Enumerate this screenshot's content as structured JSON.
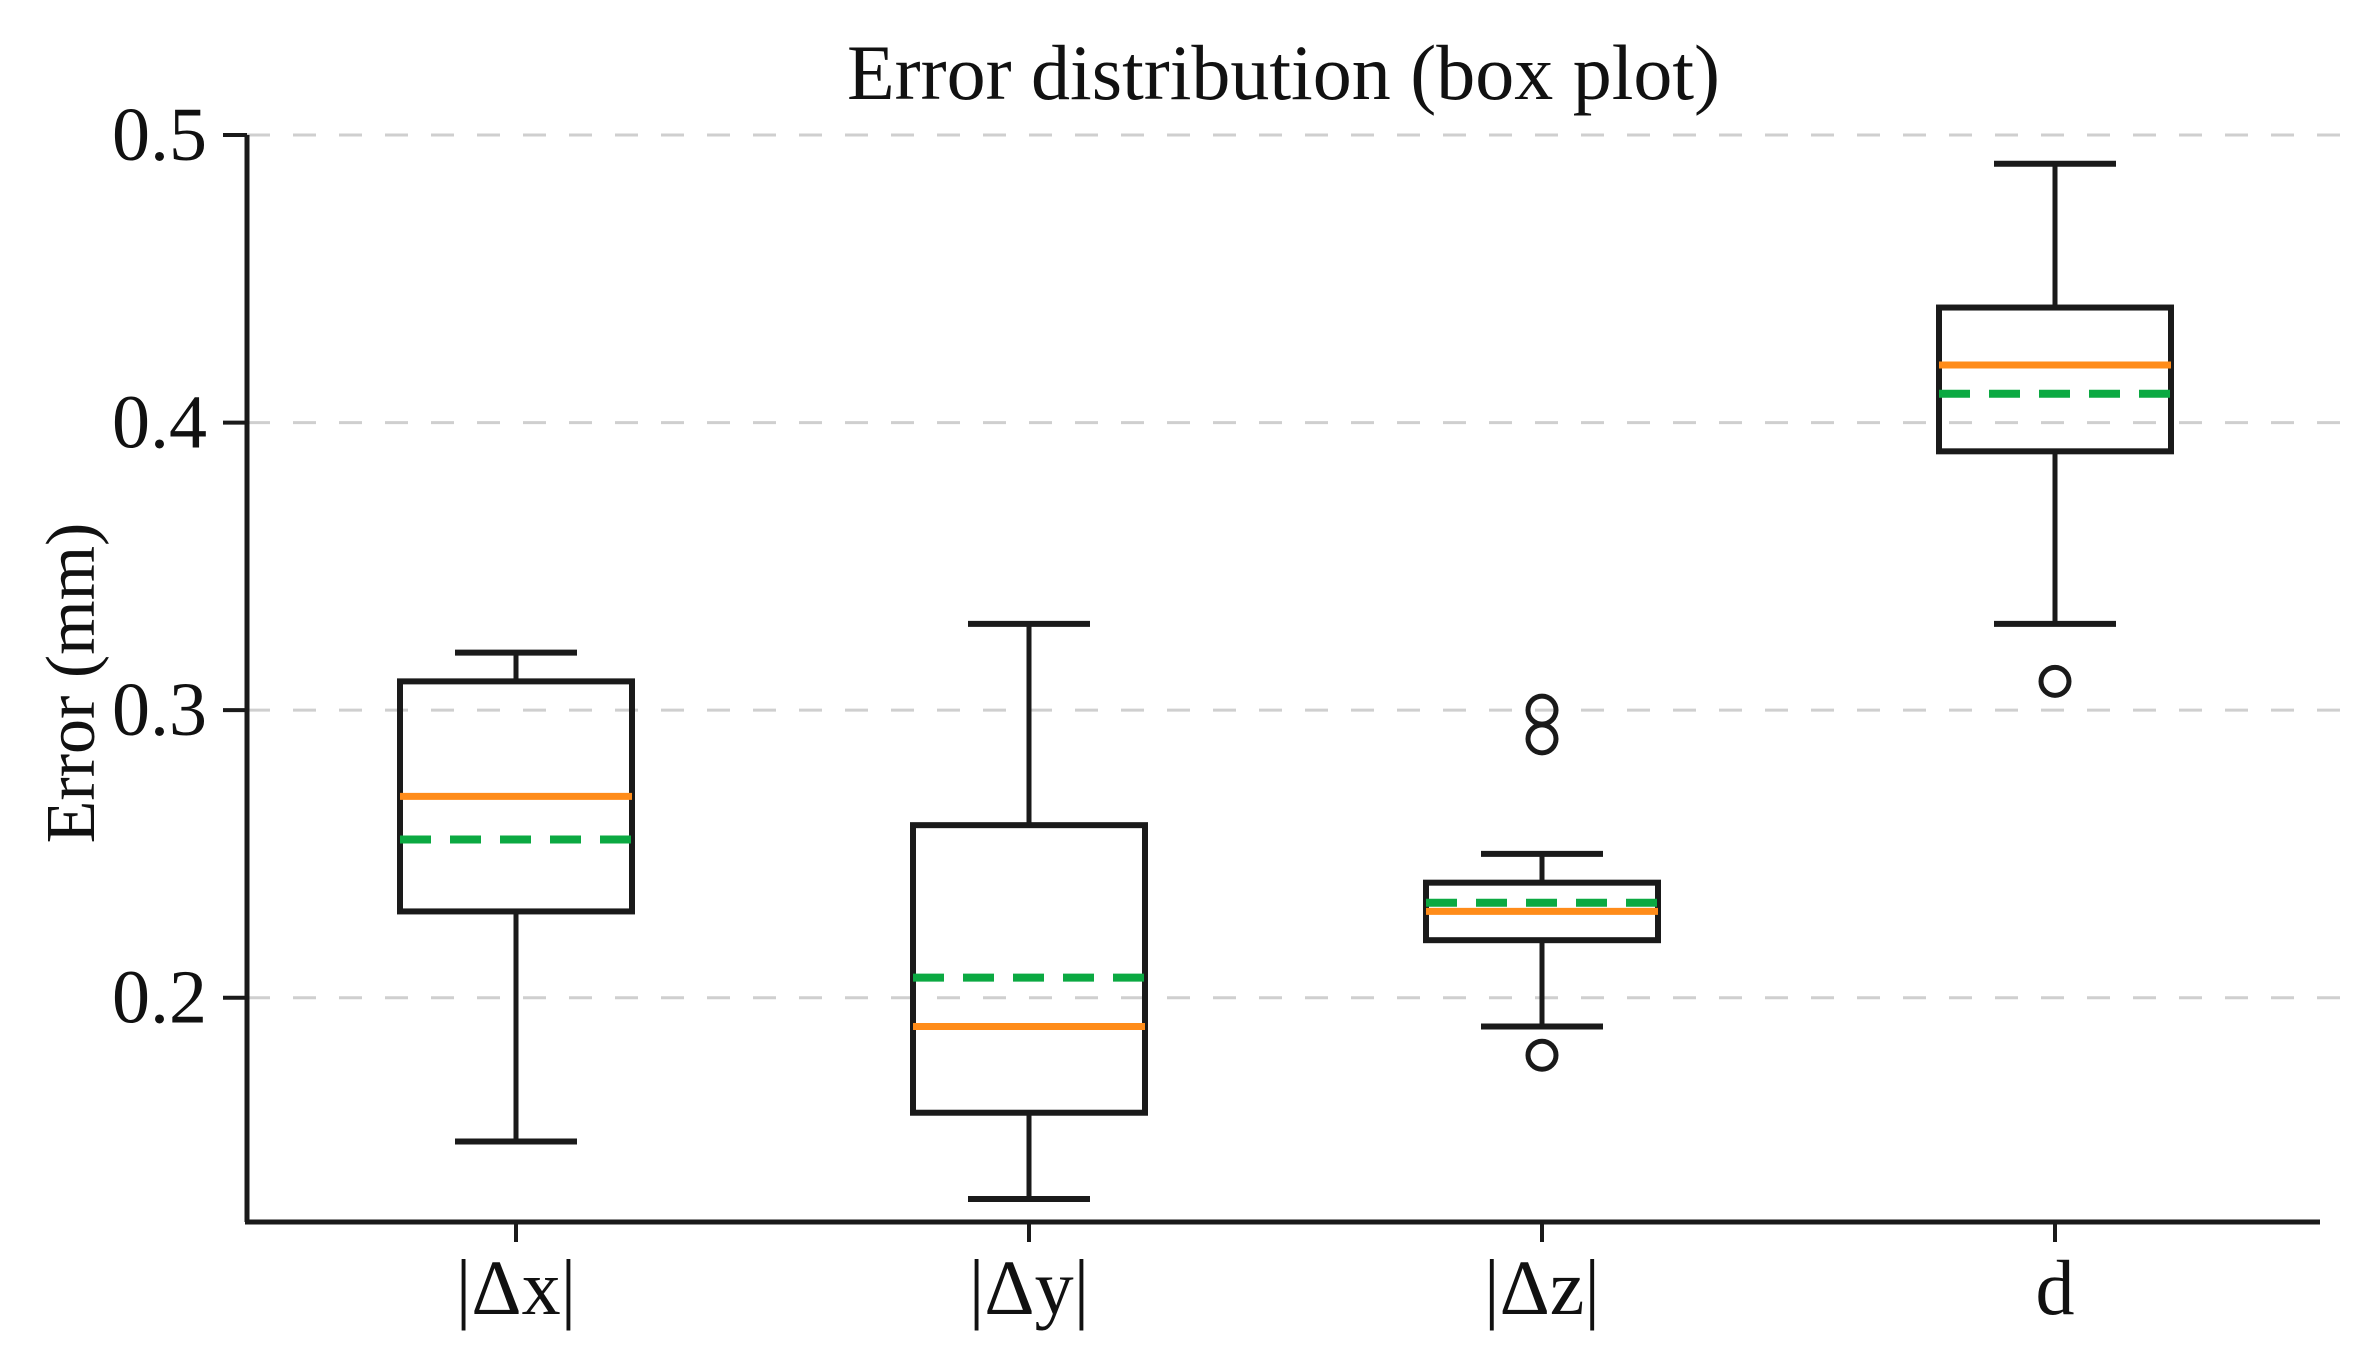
{
  "chart_title": "Error distribution (box plot)",
  "y_axis_title": "Error (mm)",
  "chart_data": {
    "type": "box",
    "title": "Error distribution (box plot)",
    "ylabel": "Error (mm)",
    "xlabel": "",
    "ylim": [
      0.122,
      0.5
    ],
    "yticks": [
      {
        "value": 0.5,
        "label": "0.5"
      },
      {
        "value": 0.4,
        "label": "0.4"
      },
      {
        "value": 0.3,
        "label": "0.3"
      },
      {
        "value": 0.2,
        "label": "0.2"
      }
    ],
    "grid": "horizontal-dashed",
    "legend": "none",
    "categories": [
      "|Δx|",
      "|Δy|",
      "|Δz|",
      "d"
    ],
    "series": [
      {
        "label": "|Δx|",
        "whislo": 0.15,
        "q1": 0.23,
        "med": 0.27,
        "mean": 0.255,
        "q3": 0.31,
        "whishi": 0.32,
        "fliers": []
      },
      {
        "label": "|Δy|",
        "whislo": 0.13,
        "q1": 0.16,
        "med": 0.19,
        "mean": 0.207,
        "q3": 0.26,
        "whishi": 0.33,
        "fliers": []
      },
      {
        "label": "|Δz|",
        "whislo": 0.19,
        "q1": 0.22,
        "med": 0.23,
        "mean": 0.233,
        "q3": 0.24,
        "whishi": 0.25,
        "fliers": [
          0.18,
          0.29,
          0.3
        ]
      },
      {
        "label": "d",
        "whislo": 0.33,
        "q1": 0.39,
        "med": 0.42,
        "mean": 0.41,
        "q3": 0.44,
        "whishi": 0.49,
        "fliers": [
          0.31
        ]
      }
    ],
    "colors": {
      "box_line": "#1a1a1a",
      "median": "#ff8c1a",
      "mean": "#0ba942",
      "grid": "#cfcfcf",
      "axis": "#1a1a1a",
      "text": "#111111",
      "background": "#ffffff"
    },
    "styles": {
      "median_style": "solid",
      "mean_style": "dashed",
      "flier_marker": "open-circle"
    }
  }
}
